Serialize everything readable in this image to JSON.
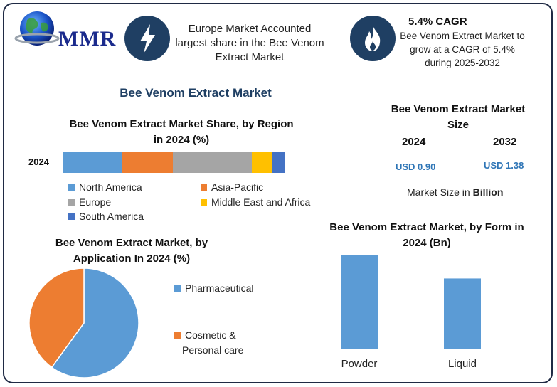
{
  "logo": {
    "text": "MMR",
    "icon": "globe-icon"
  },
  "info1": {
    "icon": "lightning-icon",
    "lines": [
      "Europe Market Accounted",
      "largest share in the Bee Venom",
      "Extract Market"
    ]
  },
  "info2": {
    "icon": "flame-icon",
    "title": "5.4% CAGR",
    "lines": [
      "Bee Venom Extract Market to",
      "grow at a CAGR of 5.4%",
      "during 2025-2032"
    ]
  },
  "main_title": "Bee Venom Extract Market",
  "market_size": {
    "title_lines": [
      "Bee Venom Extract Market",
      "Size"
    ],
    "year1": "2024",
    "year2": "2032",
    "value1": "USD 0.90",
    "value2": "USD 1.38",
    "note_prefix": "Market Size in ",
    "note_unit": "Billion"
  },
  "colors": {
    "north_america": "#5b9bd5",
    "asia_pacific": "#ed7d31",
    "europe": "#a5a5a5",
    "mea": "#ffc000",
    "south_america": "#4472c4",
    "accent": "#1f3f63"
  },
  "chart_data": [
    {
      "type": "bar",
      "orientation": "horizontal-stacked",
      "title_lines": [
        "Bee Venom Extract Market Share, by Region",
        "in 2024 (%)"
      ],
      "categories": [
        "2024"
      ],
      "series": [
        {
          "name": "North America",
          "values": [
            26.5
          ]
        },
        {
          "name": "Asia-Pacific",
          "values": [
            23
          ]
        },
        {
          "name": "Europe",
          "values": [
            35.5
          ]
        },
        {
          "name": "Middle East and Africa",
          "values": [
            9
          ]
        },
        {
          "name": "South America",
          "values": [
            6
          ]
        }
      ],
      "xlim": [
        0,
        100
      ],
      "legend": "bottom"
    },
    {
      "type": "pie",
      "title_lines": [
        "Bee Venom Extract Market, by",
        "Application In 2024 (%)"
      ],
      "categories": [
        "Pharmaceutical",
        "Cosmetic & Personal care"
      ],
      "values": [
        60,
        40
      ],
      "legend_lines": [
        [
          "Pharmaceutical"
        ],
        [
          "Cosmetic &",
          "Personal care"
        ]
      ],
      "legend": "right"
    },
    {
      "type": "bar",
      "title_lines": [
        "Bee Venom Extract Market, by Form in",
        "2024 (Bn)"
      ],
      "categories": [
        "Powder",
        "Liquid"
      ],
      "values": [
        0.52,
        0.39
      ],
      "ylim": [
        0,
        0.55
      ]
    }
  ]
}
